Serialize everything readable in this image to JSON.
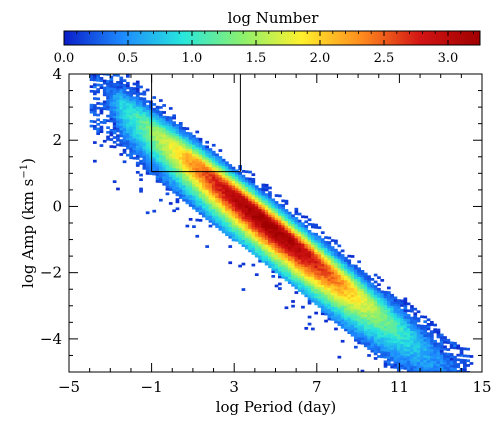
{
  "chart_data": {
    "type": "heatmap",
    "title": "",
    "xlabel": "log Period (day)",
    "ylabel_main": "log Amp (km s",
    "ylabel_sup": "−1",
    "ylabel_close": ")",
    "xlim": [
      -5,
      15
    ],
    "ylim": [
      -5,
      4
    ],
    "x_ticks": [
      -5,
      -1,
      3,
      7,
      11,
      15
    ],
    "x_tick_labels": [
      "−5",
      "−1",
      "3",
      "7",
      "11",
      "15"
    ],
    "y_ticks": [
      -4,
      -2,
      0,
      2,
      4
    ],
    "y_tick_labels": [
      "−4",
      "−2",
      "0",
      "2",
      "4"
    ],
    "colorbar": {
      "label": "log Number",
      "range": [
        0.0,
        3.25
      ],
      "ticks": [
        0.0,
        0.5,
        1.0,
        1.5,
        2.0,
        2.5,
        3.0
      ],
      "tick_labels": [
        "0.0",
        "0.5",
        "1.0",
        "1.5",
        "2.0",
        "2.5",
        "3.0"
      ],
      "colors": [
        "#0a1ec8",
        "#1e8cff",
        "#28e6dc",
        "#8cf06e",
        "#fff02d",
        "#ff8c1e",
        "#d21414",
        "#a00000"
      ]
    },
    "density": {
      "ridge_slope": -0.5,
      "ridge_intercept": 2.3,
      "peak_x": 4.5,
      "peak_y": 0.1,
      "peak_log_number": 3.25,
      "x_extent": [
        -4,
        14.5
      ],
      "upper_envelope_offset": 0.3,
      "lower_envelope_offset": -1.9
    },
    "box": {
      "x_range": [
        -1,
        3.3
      ],
      "y_range": [
        1.05,
        4.2
      ]
    }
  }
}
